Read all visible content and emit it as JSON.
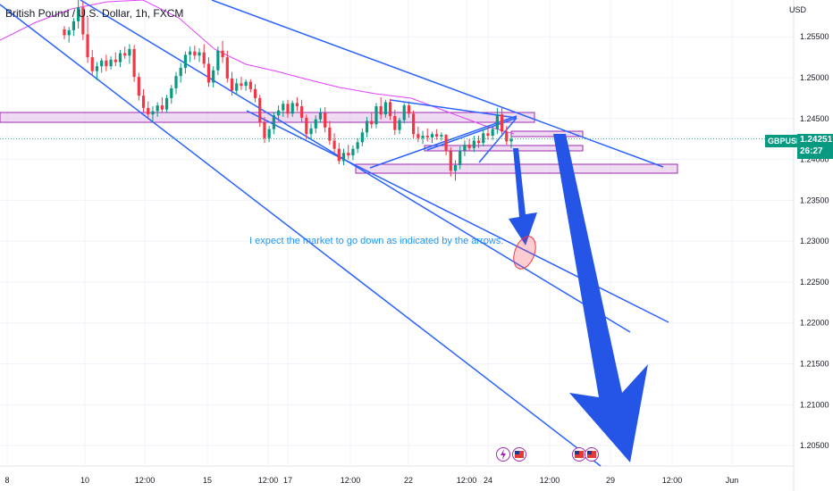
{
  "pane": {
    "title": "British Pound / U.S. Dollar, 1h, FXCM",
    "currency": "USD"
  },
  "symbol_tag": {
    "symbol": "GBPUSD",
    "price": "1.24251",
    "countdown": "26:27"
  },
  "annotation": "I expect the market to go down as indicated by the arrows.",
  "colors": {
    "up": "#089981",
    "down": "#f23645",
    "trendline": "#2962ff",
    "ma": "#e040fb",
    "zone_fill": "rgba(225,190,231,0.55)",
    "zone_stroke": "#9c27b0",
    "arrow": "#2455e6",
    "ellipse": "rgba(242,54,69,0.25)"
  },
  "icons": [
    "lightning-event-icon",
    "us-flag-event-icon",
    "uk-flag-event-icon",
    "us-flag-event-icon"
  ],
  "chart_data": {
    "type": "candlestick",
    "symbol": "GBPUSD",
    "timeframe": "1h",
    "x_ticks": [
      "8",
      "10",
      "12:00",
      "15",
      "12:00",
      "17",
      "12:00",
      "22",
      "12:00",
      "24",
      "12:00",
      "29",
      "12:00",
      "Jun"
    ],
    "y_ticks": [
      "1.25500",
      "1.25000",
      "1.24500",
      "1.24000",
      "1.23500",
      "1.23000",
      "1.22500",
      "1.22000",
      "1.21500",
      "1.21000",
      "1.20500"
    ],
    "ylim": [
      1.2025,
      1.2595
    ],
    "last_price": 1.24251,
    "candles": [
      [
        1.2559,
        1.2563,
        1.2547,
        1.2552
      ],
      [
        1.2552,
        1.2562,
        1.2543,
        1.2558
      ],
      [
        1.2558,
        1.2573,
        1.2551,
        1.2569
      ],
      [
        1.2569,
        1.2599,
        1.256,
        1.2586
      ],
      [
        1.2586,
        1.2593,
        1.2546,
        1.2553
      ],
      [
        1.2553,
        1.2574,
        1.2518,
        1.2525
      ],
      [
        1.2525,
        1.2534,
        1.2502,
        1.2508
      ],
      [
        1.2508,
        1.2519,
        1.2497,
        1.2514
      ],
      [
        1.2514,
        1.2524,
        1.2506,
        1.2521
      ],
      [
        1.2521,
        1.2528,
        1.2508,
        1.2514
      ],
      [
        1.2514,
        1.2526,
        1.251,
        1.2522
      ],
      [
        1.2522,
        1.2531,
        1.2514,
        1.2519
      ],
      [
        1.2519,
        1.2534,
        1.2513,
        1.253
      ],
      [
        1.253,
        1.2538,
        1.2523,
        1.2527
      ],
      [
        1.2527,
        1.2541,
        1.2517,
        1.2535
      ],
      [
        1.2535,
        1.254,
        1.2495,
        1.2501
      ],
      [
        1.2501,
        1.2506,
        1.2472,
        1.2478
      ],
      [
        1.2478,
        1.2486,
        1.2458,
        1.2463
      ],
      [
        1.2463,
        1.2471,
        1.2449,
        1.2455
      ],
      [
        1.2455,
        1.2465,
        1.2446,
        1.2459
      ],
      [
        1.2459,
        1.247,
        1.2452,
        1.2466
      ],
      [
        1.2466,
        1.2476,
        1.2458,
        1.2461
      ],
      [
        1.2461,
        1.2479,
        1.2457,
        1.2475
      ],
      [
        1.2475,
        1.2491,
        1.2468,
        1.2487
      ],
      [
        1.2487,
        1.2507,
        1.248,
        1.2502
      ],
      [
        1.2502,
        1.2518,
        1.2494,
        1.2512
      ],
      [
        1.2512,
        1.2532,
        1.2505,
        1.2528
      ],
      [
        1.2528,
        1.2538,
        1.2519,
        1.2532
      ],
      [
        1.2532,
        1.2539,
        1.2522,
        1.2527
      ],
      [
        1.2527,
        1.2536,
        1.2519,
        1.2531
      ],
      [
        1.2531,
        1.2541,
        1.2512,
        1.2517
      ],
      [
        1.2517,
        1.2525,
        1.2489,
        1.2494
      ],
      [
        1.2494,
        1.2514,
        1.2488,
        1.2509
      ],
      [
        1.2509,
        1.2538,
        1.2503,
        1.2533
      ],
      [
        1.2533,
        1.2545,
        1.2518,
        1.2525
      ],
      [
        1.2525,
        1.2533,
        1.2494,
        1.2499
      ],
      [
        1.2499,
        1.2507,
        1.2478,
        1.2484
      ],
      [
        1.2484,
        1.2499,
        1.2479,
        1.2493
      ],
      [
        1.2493,
        1.2501,
        1.2485,
        1.249
      ],
      [
        1.249,
        1.2498,
        1.2484,
        1.2495
      ],
      [
        1.2495,
        1.2498,
        1.2482,
        1.2486
      ],
      [
        1.2486,
        1.2492,
        1.247,
        1.2475
      ],
      [
        1.2475,
        1.2479,
        1.244,
        1.2445
      ],
      [
        1.2445,
        1.2452,
        1.242,
        1.2426
      ],
      [
        1.2426,
        1.2441,
        1.2421,
        1.2437
      ],
      [
        1.2437,
        1.2458,
        1.2431,
        1.2454
      ],
      [
        1.2454,
        1.2466,
        1.2447,
        1.246
      ],
      [
        1.246,
        1.2472,
        1.2452,
        1.2468
      ],
      [
        1.2468,
        1.2473,
        1.2451,
        1.2456
      ],
      [
        1.2456,
        1.2472,
        1.2452,
        1.2469
      ],
      [
        1.2469,
        1.2476,
        1.2459,
        1.2465
      ],
      [
        1.2465,
        1.2473,
        1.2446,
        1.2451
      ],
      [
        1.2451,
        1.2455,
        1.2425,
        1.2431
      ],
      [
        1.2431,
        1.2444,
        1.2424,
        1.2438
      ],
      [
        1.2438,
        1.2454,
        1.2432,
        1.2449
      ],
      [
        1.2449,
        1.2463,
        1.2445,
        1.2457
      ],
      [
        1.2457,
        1.2464,
        1.2433,
        1.2439
      ],
      [
        1.2439,
        1.2447,
        1.2418,
        1.2423
      ],
      [
        1.2423,
        1.2432,
        1.2407,
        1.2413
      ],
      [
        1.2413,
        1.242,
        1.2394,
        1.2398
      ],
      [
        1.2398,
        1.2413,
        1.2393,
        1.2408
      ],
      [
        1.2408,
        1.2418,
        1.24,
        1.2405
      ],
      [
        1.2405,
        1.2417,
        1.2399,
        1.2413
      ],
      [
        1.2413,
        1.2426,
        1.2408,
        1.2421
      ],
      [
        1.2421,
        1.2438,
        1.2416,
        1.2433
      ],
      [
        1.2433,
        1.2452,
        1.2427,
        1.2447
      ],
      [
        1.2447,
        1.2458,
        1.2438,
        1.2443
      ],
      [
        1.2443,
        1.2469,
        1.2438,
        1.2465
      ],
      [
        1.2465,
        1.2476,
        1.2449,
        1.2455
      ],
      [
        1.2455,
        1.2473,
        1.2451,
        1.247
      ],
      [
        1.247,
        1.2474,
        1.2448,
        1.2453
      ],
      [
        1.2453,
        1.2461,
        1.243,
        1.2436
      ],
      [
        1.2436,
        1.2451,
        1.2431,
        1.2448
      ],
      [
        1.2448,
        1.2469,
        1.2444,
        1.2466
      ],
      [
        1.2466,
        1.2471,
        1.2451,
        1.2456
      ],
      [
        1.2456,
        1.246,
        1.2426,
        1.2431
      ],
      [
        1.2431,
        1.244,
        1.2421,
        1.2426
      ],
      [
        1.2426,
        1.2435,
        1.2419,
        1.2429
      ],
      [
        1.2429,
        1.2438,
        1.2422,
        1.2427
      ],
      [
        1.2427,
        1.2434,
        1.242,
        1.2431
      ],
      [
        1.2431,
        1.2437,
        1.2424,
        1.2428
      ],
      [
        1.2428,
        1.2433,
        1.2423,
        1.243
      ],
      [
        1.243,
        1.2431,
        1.2405,
        1.241
      ],
      [
        1.241,
        1.2415,
        1.2379,
        1.2386
      ],
      [
        1.2386,
        1.2399,
        1.2374,
        1.2393
      ],
      [
        1.2393,
        1.2416,
        1.2388,
        1.2411
      ],
      [
        1.2411,
        1.2423,
        1.2404,
        1.2418
      ],
      [
        1.2418,
        1.2425,
        1.241,
        1.2414
      ],
      [
        1.2414,
        1.2429,
        1.2409,
        1.2423
      ],
      [
        1.2423,
        1.2429,
        1.2414,
        1.242
      ],
      [
        1.242,
        1.2437,
        1.2416,
        1.2432
      ],
      [
        1.2432,
        1.244,
        1.2424,
        1.2429
      ],
      [
        1.2429,
        1.2441,
        1.2424,
        1.2437
      ],
      [
        1.2437,
        1.2463,
        1.2431,
        1.2455
      ],
      [
        1.2455,
        1.2463,
        1.2428,
        1.2434
      ],
      [
        1.2434,
        1.2441,
        1.2418,
        1.2422
      ],
      [
        1.2422,
        1.243,
        1.2414,
        1.2425
      ]
    ]
  }
}
